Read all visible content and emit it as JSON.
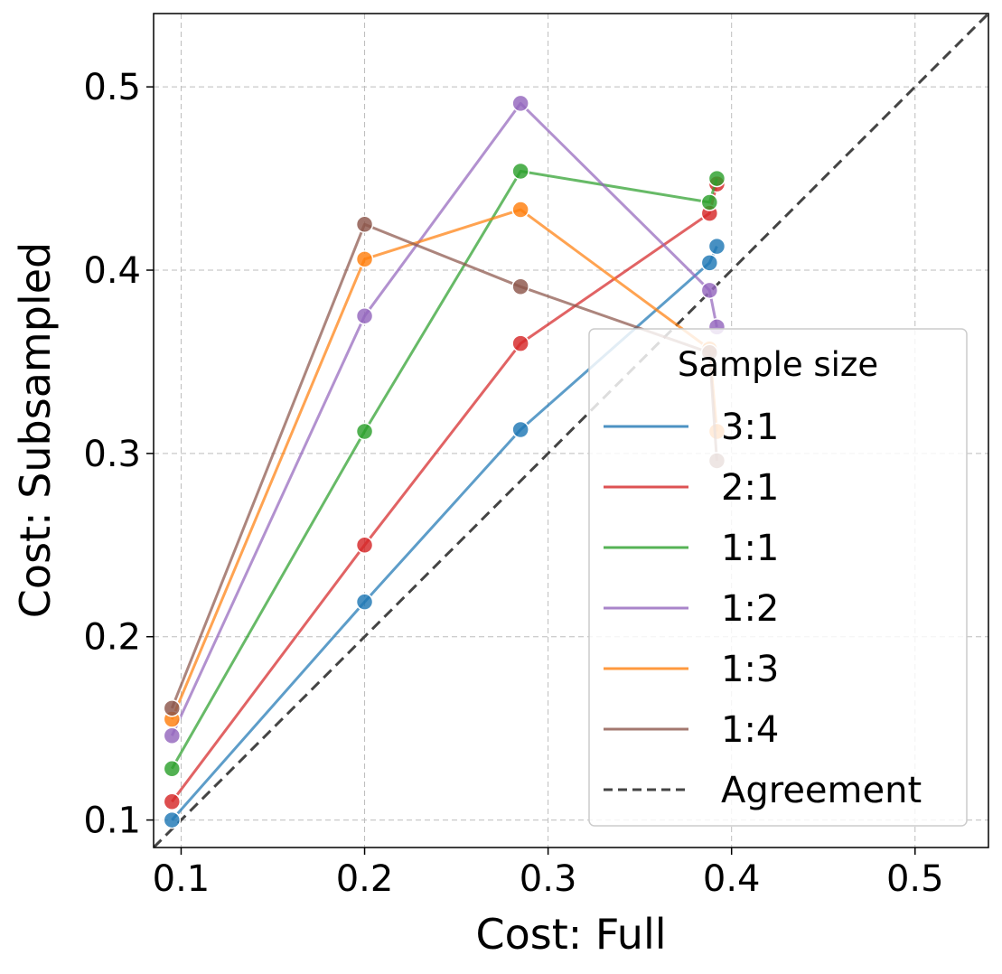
{
  "chart_data": {
    "type": "line",
    "xlabel": "Cost: Full",
    "ylabel": "Cost: Subsampled",
    "xlim": [
      0.085,
      0.54
    ],
    "ylim": [
      0.085,
      0.54
    ],
    "xticks": [
      0.1,
      0.2,
      0.3,
      0.4,
      0.5
    ],
    "yticks": [
      0.1,
      0.2,
      0.3,
      0.4,
      0.5
    ],
    "xtick_labels": [
      "0.1",
      "0.2",
      "0.3",
      "0.4",
      "0.5"
    ],
    "ytick_labels": [
      "0.1",
      "0.2",
      "0.3",
      "0.4",
      "0.5"
    ],
    "grid": true,
    "legend": {
      "title": "Sample size",
      "placement": "lower-right"
    },
    "series": [
      {
        "name": "3:1",
        "color": "#1f77b4",
        "x": [
          0.095,
          0.2,
          0.285,
          0.388,
          0.392
        ],
        "y": [
          0.1,
          0.219,
          0.313,
          0.404,
          0.413
        ]
      },
      {
        "name": "2:1",
        "color": "#d62728",
        "x": [
          0.095,
          0.2,
          0.285,
          0.388,
          0.392
        ],
        "y": [
          0.11,
          0.25,
          0.36,
          0.431,
          0.447
        ]
      },
      {
        "name": "1:1",
        "color": "#2ca02c",
        "x": [
          0.095,
          0.2,
          0.285,
          0.388,
          0.392
        ],
        "y": [
          0.128,
          0.312,
          0.454,
          0.437,
          0.45
        ]
      },
      {
        "name": "1:2",
        "color": "#9467bd",
        "x": [
          0.095,
          0.2,
          0.285,
          0.388,
          0.392
        ],
        "y": [
          0.146,
          0.375,
          0.491,
          0.389,
          0.369
        ]
      },
      {
        "name": "1:3",
        "color": "#ff7f0e",
        "x": [
          0.095,
          0.2,
          0.285,
          0.388,
          0.392
        ],
        "y": [
          0.155,
          0.406,
          0.433,
          0.357,
          0.312
        ]
      },
      {
        "name": "1:4",
        "color": "#8c564b",
        "x": [
          0.095,
          0.2,
          0.285,
          0.388,
          0.392
        ],
        "y": [
          0.161,
          0.425,
          0.391,
          0.355,
          0.296
        ]
      }
    ],
    "reference_line": {
      "name": "Agreement",
      "color": "#444444",
      "style": "dashed",
      "slope": 1,
      "intercept": 0
    }
  }
}
